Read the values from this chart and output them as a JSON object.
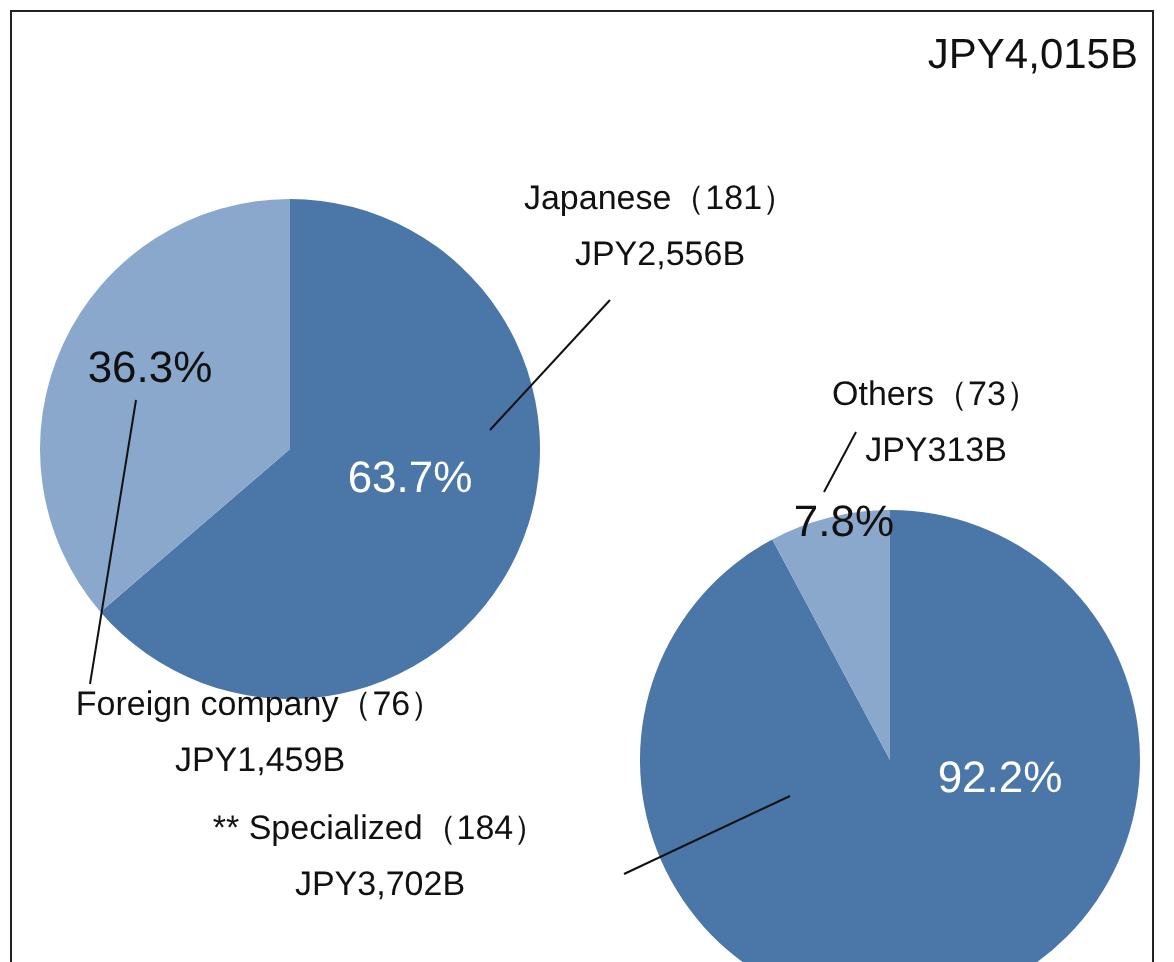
{
  "chart_data": [
    {
      "type": "pie",
      "title": "JPY4,015B",
      "categories": [
        "Japanese（181）",
        "Foreign company（76）"
      ],
      "values": [
        63.7,
        36.3
      ],
      "colors": [
        "#4a76a8",
        "#8aa7cc"
      ],
      "value_labels": [
        "63.7%",
        "36.3%"
      ],
      "annotations": [
        "JPY2,556B",
        "JPY1,459B"
      ],
      "legend": false
    },
    {
      "type": "pie",
      "categories": [
        "** Specialized（184）",
        "Others（73）"
      ],
      "values": [
        92.2,
        7.8
      ],
      "colors": [
        "#4a76a8",
        "#8aa7cc"
      ],
      "value_labels": [
        "92.2%",
        "7.8%"
      ],
      "annotations": [
        "JPY3,702B",
        "JPY313B"
      ],
      "legend": false
    }
  ]
}
